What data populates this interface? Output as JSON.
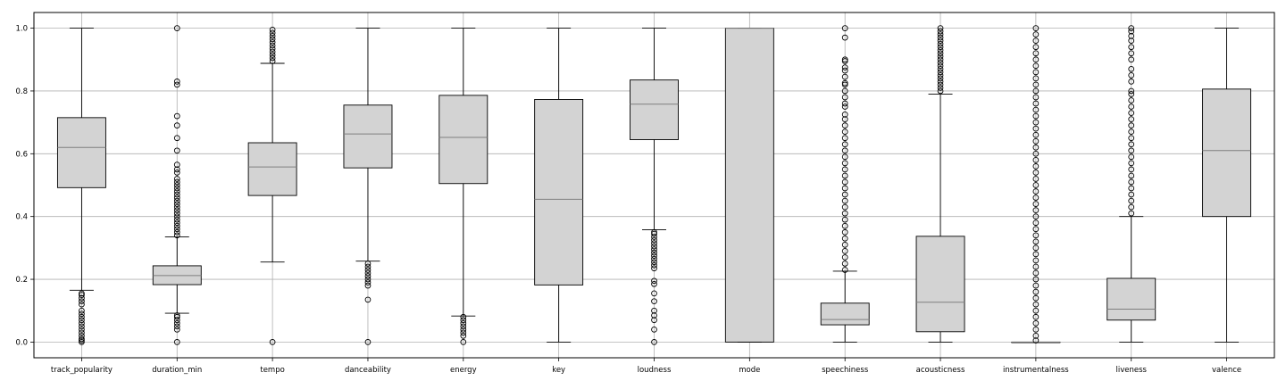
{
  "chart_data": {
    "type": "box",
    "title": "",
    "xlabel": "",
    "ylabel": "",
    "ylim": [
      -0.05,
      1.05
    ],
    "yticks": [
      "0.0",
      "0.2",
      "0.4",
      "0.6",
      "0.8",
      "1.0"
    ],
    "grid": true,
    "box_fill": "#d3d3d3",
    "median_color": "#7f7f7f",
    "categories": [
      "track_popularity",
      "duration_min",
      "tempo",
      "danceability",
      "energy",
      "key",
      "loudness",
      "mode",
      "speechiness",
      "acousticness",
      "instrumentalness",
      "liveness",
      "valence"
    ],
    "boxes": [
      {
        "whislo": 0.165,
        "q1": 0.492,
        "med": 0.62,
        "q3": 0.715,
        "whishi": 1.0,
        "fliers": [
          0.0,
          0.005,
          0.01,
          0.02,
          0.03,
          0.04,
          0.05,
          0.06,
          0.07,
          0.08,
          0.09,
          0.1,
          0.12,
          0.13,
          0.14,
          0.15,
          0.155
        ]
      },
      {
        "whislo": 0.092,
        "q1": 0.183,
        "med": 0.212,
        "q3": 0.243,
        "whishi": 0.335,
        "fliers": [
          0.0,
          0.04,
          0.05,
          0.06,
          0.07,
          0.08,
          0.085,
          0.34,
          0.35,
          0.36,
          0.37,
          0.38,
          0.39,
          0.4,
          0.41,
          0.42,
          0.43,
          0.44,
          0.45,
          0.46,
          0.47,
          0.48,
          0.49,
          0.5,
          0.51,
          0.52,
          0.54,
          0.55,
          0.565,
          0.61,
          0.65,
          0.69,
          0.72,
          0.82,
          0.83,
          1.0
        ]
      },
      {
        "whislo": 0.255,
        "q1": 0.467,
        "med": 0.558,
        "q3": 0.635,
        "whishi": 0.888,
        "fliers": [
          0.0,
          0.895,
          0.905,
          0.915,
          0.925,
          0.935,
          0.945,
          0.955,
          0.965,
          0.975,
          0.985,
          0.995
        ]
      },
      {
        "whislo": 0.258,
        "q1": 0.555,
        "med": 0.663,
        "q3": 0.755,
        "whishi": 1.0,
        "fliers": [
          0.0,
          0.135,
          0.18,
          0.19,
          0.2,
          0.21,
          0.22,
          0.23,
          0.24,
          0.25
        ]
      },
      {
        "whislo": 0.083,
        "q1": 0.505,
        "med": 0.652,
        "q3": 0.786,
        "whishi": 1.0,
        "fliers": [
          0.0,
          0.02,
          0.03,
          0.04,
          0.05,
          0.06,
          0.07,
          0.08
        ]
      },
      {
        "whislo": 0.0,
        "q1": 0.182,
        "med": 0.455,
        "q3": 0.773,
        "whishi": 1.0,
        "fliers": []
      },
      {
        "whislo": 0.358,
        "q1": 0.645,
        "med": 0.758,
        "q3": 0.835,
        "whishi": 1.0,
        "fliers": [
          0.0,
          0.04,
          0.07,
          0.085,
          0.1,
          0.13,
          0.155,
          0.185,
          0.195,
          0.235,
          0.245,
          0.255,
          0.265,
          0.275,
          0.285,
          0.295,
          0.305,
          0.315,
          0.325,
          0.335,
          0.345,
          0.35
        ]
      },
      {
        "whislo": 0.0,
        "q1": 0.0,
        "med": 1.0,
        "q3": 1.0,
        "whishi": 1.0,
        "fliers": []
      },
      {
        "whislo": 0.0,
        "q1": 0.055,
        "med": 0.072,
        "q3": 0.124,
        "whishi": 0.226,
        "fliers": [
          0.23,
          0.25,
          0.27,
          0.29,
          0.31,
          0.33,
          0.35,
          0.37,
          0.39,
          0.41,
          0.43,
          0.45,
          0.47,
          0.49,
          0.51,
          0.53,
          0.55,
          0.57,
          0.59,
          0.61,
          0.63,
          0.65,
          0.67,
          0.69,
          0.71,
          0.725,
          0.75,
          0.76,
          0.78,
          0.8,
          0.82,
          0.825,
          0.845,
          0.865,
          0.875,
          0.895,
          0.9,
          0.97,
          1.0
        ]
      },
      {
        "whislo": 0.0,
        "q1": 0.033,
        "med": 0.127,
        "q3": 0.337,
        "whishi": 0.79,
        "fliers": [
          0.8,
          0.81,
          0.82,
          0.83,
          0.84,
          0.85,
          0.86,
          0.87,
          0.88,
          0.89,
          0.9,
          0.91,
          0.92,
          0.93,
          0.94,
          0.95,
          0.96,
          0.97,
          0.98,
          0.99,
          1.0
        ]
      },
      {
        "whislo": 0.0,
        "q1": 0.0,
        "med": 0.0,
        "q3": 0.0,
        "whishi": 0.0,
        "fliers": [
          0.005,
          0.02,
          0.04,
          0.06,
          0.08,
          0.1,
          0.12,
          0.14,
          0.16,
          0.18,
          0.2,
          0.22,
          0.24,
          0.26,
          0.28,
          0.3,
          0.32,
          0.34,
          0.36,
          0.38,
          0.4,
          0.42,
          0.44,
          0.46,
          0.48,
          0.5,
          0.52,
          0.54,
          0.56,
          0.58,
          0.6,
          0.62,
          0.64,
          0.66,
          0.68,
          0.7,
          0.72,
          0.74,
          0.76,
          0.78,
          0.8,
          0.82,
          0.84,
          0.86,
          0.88,
          0.9,
          0.92,
          0.94,
          0.96,
          0.98,
          1.0
        ]
      },
      {
        "whislo": 0.0,
        "q1": 0.07,
        "med": 0.105,
        "q3": 0.203,
        "whishi": 0.4,
        "fliers": [
          0.41,
          0.43,
          0.45,
          0.47,
          0.49,
          0.51,
          0.53,
          0.55,
          0.57,
          0.59,
          0.61,
          0.63,
          0.65,
          0.67,
          0.69,
          0.71,
          0.73,
          0.75,
          0.77,
          0.79,
          0.8,
          0.83,
          0.85,
          0.87,
          0.9,
          0.92,
          0.94,
          0.96,
          0.975,
          0.99,
          1.0
        ]
      },
      {
        "whislo": 0.0,
        "q1": 0.4,
        "med": 0.61,
        "q3": 0.806,
        "whishi": 1.0,
        "fliers": []
      }
    ]
  }
}
